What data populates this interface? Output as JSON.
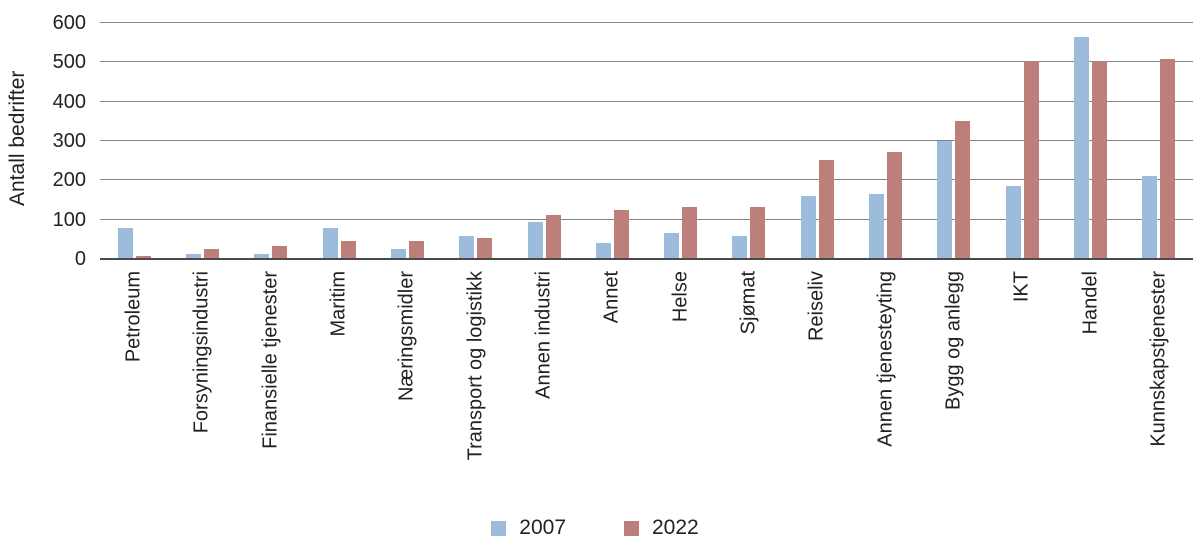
{
  "chart_data": {
    "type": "bar",
    "title": "",
    "xlabel": "",
    "ylabel": "Antall bedrifter",
    "ylim": [
      0,
      600
    ],
    "ytick_step": 100,
    "ytick_labels": [
      "0",
      "100",
      "200",
      "300",
      "400",
      "500",
      "600"
    ],
    "grid": true,
    "legend_position": "bottom-center",
    "categories": [
      "Petroleum",
      "Forsyningsindustri",
      "Finansielle tjenester",
      "Maritim",
      "Næringsmidler",
      "Transport og logistikk",
      "Annen industri",
      "Annet",
      "Helse",
      "Sjømat",
      "Reiseliv",
      "Annen tjenesteyting",
      "Bygg og anlegg",
      "IKT",
      "Handel",
      "Kunnskapstjenester"
    ],
    "series": [
      {
        "name": "2007",
        "color": "#9DBCDC",
        "values": [
          78,
          12,
          13,
          78,
          25,
          58,
          94,
          40,
          66,
          59,
          160,
          165,
          300,
          185,
          565,
          210
        ]
      },
      {
        "name": "2022",
        "color": "#BD7F79",
        "values": [
          7,
          26,
          33,
          46,
          47,
          53,
          112,
          125,
          132,
          133,
          253,
          273,
          352,
          503,
          503,
          508
        ]
      }
    ]
  },
  "colors": {
    "background": "#ffffff",
    "gridline": "#848484",
    "axis_line": "#4a4a4a",
    "text": "#222222"
  }
}
